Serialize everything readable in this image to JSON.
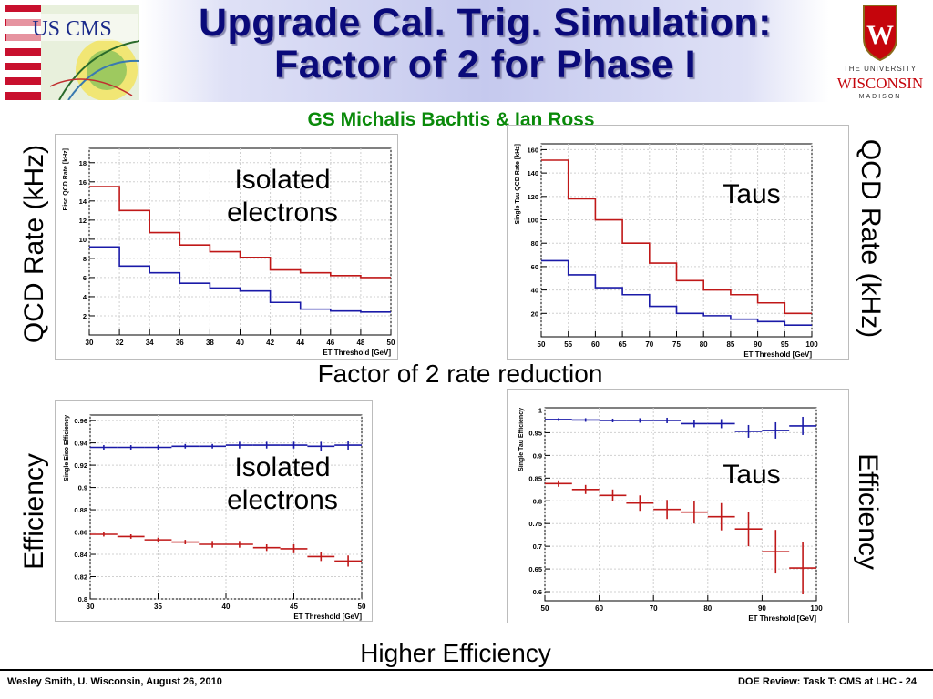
{
  "header": {
    "title_line1": "Upgrade Cal. Trig. Simulation:",
    "title_line2": "Factor of 2 for Phase I",
    "subtitle": "GS Michalis Bachtis & Ian Ross",
    "left_logo_text": "US CMS",
    "right_logo_line1": "THE UNIVERSITY",
    "right_logo_line2": "WISCONSIN",
    "right_logo_line3": "MADISON",
    "right_logo_crest_letter": "W"
  },
  "labels": {
    "qcd_rate_left": "QCD Rate (kHz)",
    "qcd_rate_right": "QCD Rate (kHz)",
    "efficiency_left": "Efficiency",
    "efficiency_right": "Efficiency",
    "isolated_electrons_top": "Isolated electrons",
    "taus_top": "Taus",
    "isolated_electrons_bottom": "Isolated electrons",
    "taus_bottom": "Taus",
    "factor_of_2": "Factor of 2 rate reduction",
    "higher_efficiency": "Higher Efficiency"
  },
  "footer": {
    "left": "Wesley Smith, U. Wisconsin, August 26, 2010",
    "right": "DOE Review: Task T: CMS at LHC -  24"
  },
  "colors": {
    "title": "#0a0a7a",
    "subtitle": "#0a8a0a",
    "series_red": "#c01818",
    "series_blue": "#1a1aa8"
  },
  "chart_data": [
    {
      "type": "line",
      "step": true,
      "ylabel": "Eiso QCD Rate [kHz]",
      "xlabel": "ET Threshold [GeV]",
      "xlim": [
        30,
        50
      ],
      "ylim": [
        0,
        19.5
      ],
      "xticks": [
        "30",
        "32",
        "34",
        "36",
        "38",
        "40",
        "42",
        "44",
        "46",
        "48",
        "50"
      ],
      "yticks": [
        "2",
        "4",
        "6",
        "8",
        "10",
        "12",
        "14",
        "16",
        "18"
      ],
      "x_edges": [
        30,
        32,
        34,
        36,
        38,
        40,
        42,
        44,
        46,
        48,
        50
      ],
      "series": [
        {
          "color": "red",
          "values": [
            15.5,
            13.0,
            10.7,
            9.4,
            8.7,
            8.1,
            6.8,
            6.5,
            6.2,
            6.0
          ]
        },
        {
          "color": "blue",
          "values": [
            9.2,
            7.2,
            6.5,
            5.4,
            4.9,
            4.6,
            3.4,
            2.7,
            2.5,
            2.4
          ]
        }
      ]
    },
    {
      "type": "line",
      "step": true,
      "ylabel": "Single Tau QCD Rate [kHz]",
      "xlabel": "ET Threshold [GeV]",
      "xlim": [
        50,
        100
      ],
      "ylim": [
        0,
        165
      ],
      "xticks": [
        "50",
        "55",
        "60",
        "65",
        "70",
        "75",
        "80",
        "85",
        "90",
        "95",
        "100"
      ],
      "yticks": [
        "20",
        "40",
        "60",
        "80",
        "100",
        "120",
        "140",
        "160"
      ],
      "x_edges": [
        50,
        55,
        60,
        65,
        70,
        75,
        80,
        85,
        90,
        95,
        100
      ],
      "series": [
        {
          "color": "red",
          "values": [
            151,
            118,
            100,
            80,
            63,
            48,
            40,
            36,
            29,
            20
          ]
        },
        {
          "color": "blue",
          "values": [
            65,
            53,
            42,
            36,
            26,
            20,
            18,
            15,
            13,
            10
          ]
        }
      ]
    },
    {
      "type": "scatter",
      "errorbars": true,
      "ylabel": "Single Eiso Efficiency",
      "xlabel": "ET Threshold [GeV]",
      "xlim": [
        30,
        50
      ],
      "ylim": [
        0.8,
        0.965
      ],
      "xticks": [
        "30",
        "35",
        "40",
        "45",
        "50"
      ],
      "yticks": [
        "0.8",
        "0.82",
        "0.84",
        "0.86",
        "0.88",
        "0.9",
        "0.92",
        "0.94",
        "0.96"
      ],
      "xerr": 1,
      "series": [
        {
          "color": "blue",
          "x": [
            31,
            33,
            35,
            37,
            39,
            41,
            43,
            45,
            47,
            49
          ],
          "y": [
            0.936,
            0.936,
            0.936,
            0.937,
            0.937,
            0.938,
            0.938,
            0.938,
            0.937,
            0.938
          ],
          "yerr": [
            0.002,
            0.002,
            0.002,
            0.002,
            0.002,
            0.003,
            0.003,
            0.003,
            0.004,
            0.004
          ]
        },
        {
          "color": "red",
          "x": [
            31,
            33,
            35,
            37,
            39,
            41,
            43,
            45,
            47,
            49
          ],
          "y": [
            0.858,
            0.856,
            0.853,
            0.851,
            0.849,
            0.849,
            0.846,
            0.845,
            0.838,
            0.834
          ],
          "yerr": [
            0.002,
            0.002,
            0.002,
            0.002,
            0.003,
            0.003,
            0.003,
            0.004,
            0.004,
            0.005
          ]
        }
      ]
    },
    {
      "type": "scatter",
      "errorbars": true,
      "ylabel": "Single Tau Efficiency",
      "xlabel": "ET Threshold [GeV]",
      "xlim": [
        50,
        100
      ],
      "ylim": [
        0.58,
        1.005
      ],
      "xticks": [
        "50",
        "60",
        "70",
        "80",
        "90",
        "100"
      ],
      "yticks": [
        "0.6",
        "0.65",
        "0.7",
        "0.75",
        "0.8",
        "0.85",
        "0.9",
        "0.95",
        "1"
      ],
      "xerr": 2.5,
      "series": [
        {
          "color": "blue",
          "x": [
            52.5,
            57.5,
            62.5,
            67.5,
            72.5,
            77.5,
            82.5,
            87.5,
            92.5,
            97.5
          ],
          "y": [
            0.979,
            0.978,
            0.977,
            0.977,
            0.977,
            0.97,
            0.97,
            0.953,
            0.955,
            0.965
          ],
          "yerr": [
            0.003,
            0.004,
            0.004,
            0.005,
            0.006,
            0.008,
            0.01,
            0.014,
            0.018,
            0.02
          ]
        },
        {
          "color": "red",
          "x": [
            52.5,
            57.5,
            62.5,
            67.5,
            72.5,
            77.5,
            82.5,
            87.5,
            92.5,
            97.5
          ],
          "y": [
            0.838,
            0.825,
            0.812,
            0.795,
            0.781,
            0.775,
            0.765,
            0.738,
            0.688,
            0.652
          ],
          "yerr": [
            0.007,
            0.01,
            0.013,
            0.017,
            0.021,
            0.025,
            0.03,
            0.038,
            0.048,
            0.058
          ]
        }
      ]
    }
  ]
}
